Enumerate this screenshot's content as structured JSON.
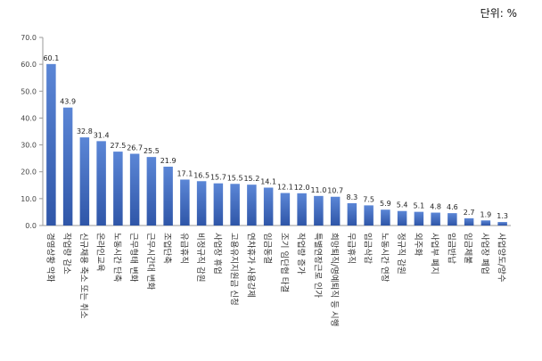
{
  "unit_label": "단위: %",
  "colors": {
    "bar_top": "#5b86d6",
    "bar_bottom": "#2f56a8",
    "axis": "#9a9a9a"
  },
  "chart_data": {
    "type": "bar",
    "title": "",
    "xlabel": "",
    "ylabel": "",
    "ylim": [
      0,
      70
    ],
    "yticks": [
      "0.0",
      "10.0",
      "20.0",
      "30.0",
      "40.0",
      "50.0",
      "60.0",
      "70.0"
    ],
    "grid": false,
    "categories": [
      "경영상황 악화",
      "작업량 감소",
      "신규채용 축소 또는 취소",
      "온라인교육",
      "노동시간 단축",
      "근무형태 변화",
      "근무시간대 변화",
      "조업단축",
      "유급휴직",
      "비정규직 감원",
      "사업장 휴업",
      "고용유지지원금 신청",
      "연차휴가 사용강제",
      "임금동결",
      "조기 임단협 타결",
      "작업량 증가",
      "특별연장근로 인가",
      "희망퇴직/명예퇴직 등 시행",
      "무급휴직",
      "임금삭감",
      "노동시간 연장",
      "정규직 감원",
      "외주화",
      "사업부 폐지",
      "임금반납",
      "임금체불",
      "사업장 폐업",
      "사업양도/양수"
    ],
    "values": [
      60.1,
      43.9,
      32.8,
      31.4,
      27.5,
      26.7,
      25.5,
      21.9,
      17.1,
      16.5,
      15.7,
      15.5,
      15.2,
      14.1,
      12.1,
      12.0,
      11.0,
      10.7,
      8.3,
      7.5,
      5.9,
      5.4,
      5.1,
      4.8,
      4.6,
      2.7,
      1.9,
      1.3
    ],
    "value_labels": [
      "60.1",
      "43.9",
      "32.8",
      "31.4",
      "27.5",
      "26.7",
      "25.5",
      "21.9",
      "17.1",
      "16.5",
      "15.7",
      "15.5",
      "15.2",
      "14.1",
      "12.1",
      "12.0",
      "11.0",
      "10.7",
      "8.3",
      "7.5",
      "5.9",
      "5.4",
      "5.1",
      "4.8",
      "4.6",
      "2.7",
      "1.9",
      "1.3"
    ]
  }
}
